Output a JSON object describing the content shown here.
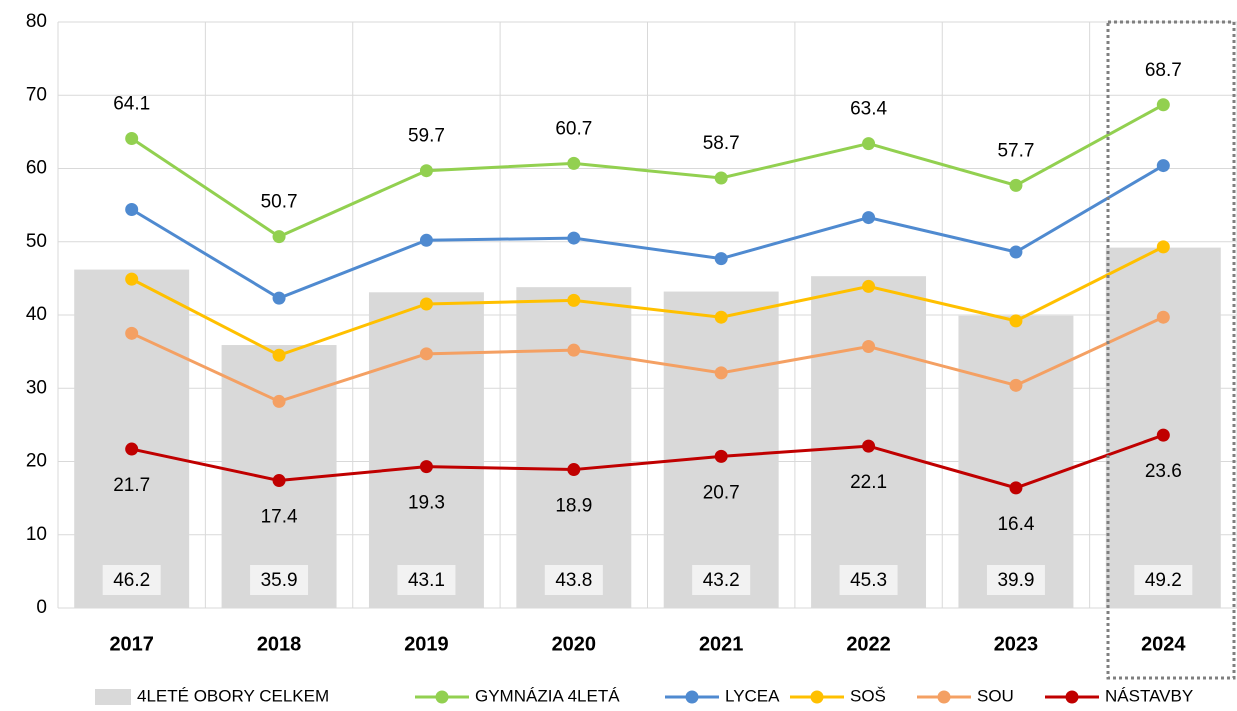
{
  "chart_data": {
    "type": "combo",
    "categories": [
      "2017",
      "2018",
      "2019",
      "2020",
      "2021",
      "2022",
      "2023",
      "2024"
    ],
    "ylim": [
      0,
      80
    ],
    "yticks": [
      0,
      10,
      20,
      30,
      40,
      50,
      60,
      70,
      80
    ],
    "grid": true,
    "legend": "bottom",
    "series": [
      {
        "name": "4LETÉ OBORY CELKEM",
        "type": "bar",
        "color": "#d9d9d9",
        "values": [
          46.2,
          35.9,
          43.1,
          43.8,
          43.2,
          45.3,
          39.9,
          49.2
        ],
        "labels": "bottom"
      },
      {
        "name": "GYMNÁZIA 4LETÁ",
        "type": "line",
        "color": "#92d050",
        "values": [
          64.1,
          50.7,
          59.7,
          60.7,
          58.7,
          63.4,
          57.7,
          68.7
        ],
        "labels": "above"
      },
      {
        "name": "LYCEA",
        "type": "line",
        "color": "#4f8ad0",
        "values": [
          54.4,
          42.3,
          50.2,
          50.5,
          47.7,
          53.3,
          48.6,
          60.4
        ]
      },
      {
        "name": "SOŠ",
        "type": "line",
        "color": "#ffc000",
        "values": [
          44.9,
          34.5,
          41.5,
          42.0,
          39.7,
          43.9,
          39.2,
          49.3
        ]
      },
      {
        "name": "SOU",
        "type": "line",
        "color": "#f4a063",
        "values": [
          37.5,
          28.2,
          34.7,
          35.2,
          32.1,
          35.7,
          30.4,
          39.7
        ]
      },
      {
        "name": "NÁSTAVBY",
        "type": "line",
        "color": "#c00000",
        "values": [
          21.7,
          17.4,
          19.3,
          18.9,
          20.7,
          22.1,
          16.4,
          23.6
        ],
        "labels": "below"
      }
    ]
  }
}
